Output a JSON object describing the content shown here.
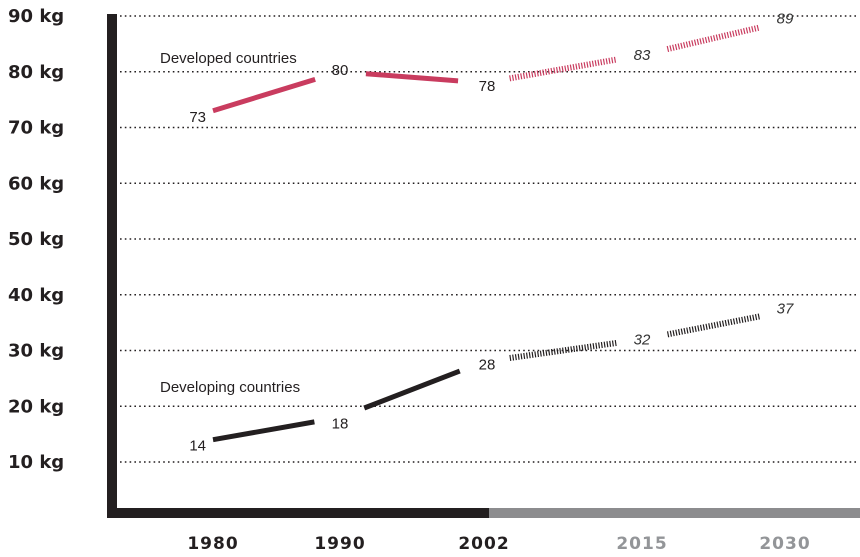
{
  "chart_data": {
    "type": "line",
    "x": [
      1980,
      1990,
      2002,
      2015,
      2030
    ],
    "x_tick_labels": [
      "1980",
      "1990",
      "2002",
      "2015",
      "2030"
    ],
    "projected_from_index": 2,
    "y_tick_labels": [
      "90 kg",
      "80 kg",
      "70 kg",
      "60 kg",
      "50 kg",
      "40 kg",
      "30 kg",
      "20 kg",
      "10 kg"
    ],
    "y_tick_values": [
      90,
      80,
      70,
      60,
      50,
      40,
      30,
      20,
      10
    ],
    "ylim": [
      0,
      90
    ],
    "grid": "horizontal dotted",
    "title": "",
    "xlabel": "",
    "ylabel": "",
    "series": [
      {
        "name": "Developed countries",
        "values": [
          73,
          80,
          78,
          83,
          89
        ],
        "labels": [
          "73",
          "80",
          "78",
          "83",
          "89"
        ],
        "color": "#c93c5f"
      },
      {
        "name": "Developing countries",
        "values": [
          14,
          18,
          28,
          32,
          37
        ],
        "labels": [
          "14",
          "18",
          "28",
          "32",
          "37"
        ],
        "color": "#231f20"
      }
    ],
    "colors": {
      "axis": "#231f20",
      "axis_projected": "#8c8c8e",
      "grid": "#231f20",
      "tick_actual": "#231f20",
      "tick_projected": "#939598"
    }
  }
}
